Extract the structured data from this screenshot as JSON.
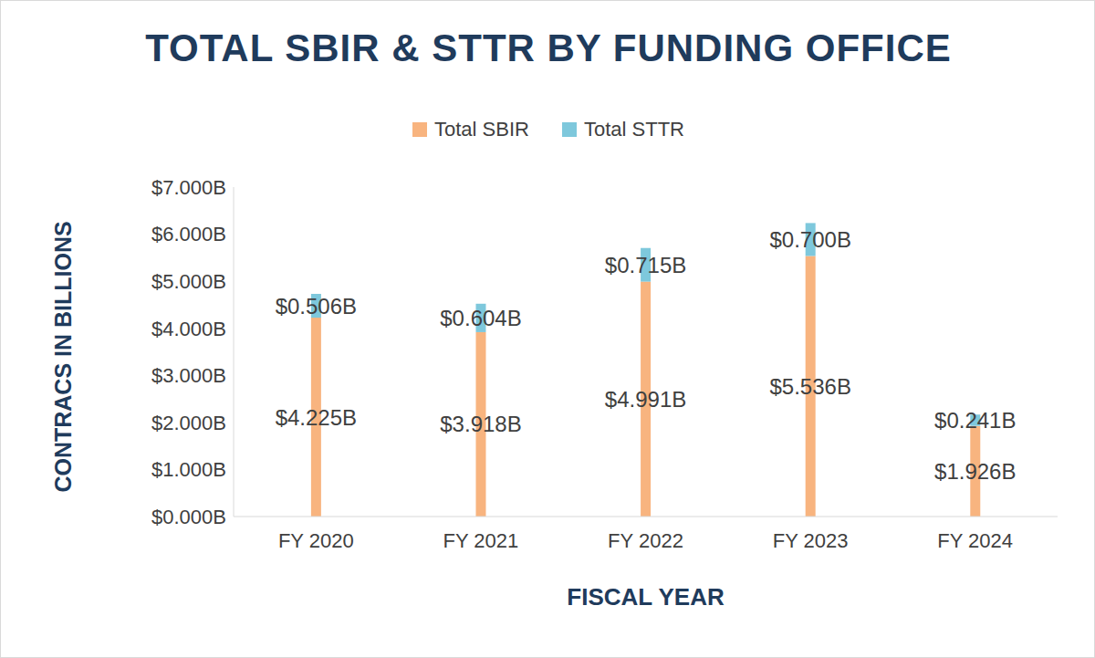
{
  "chart_data": {
    "type": "bar",
    "title": "TOTAL SBIR & STTR BY FUNDING OFFICE",
    "x_label": "FISCAL YEAR",
    "y_label": "CONTRACS IN BILLIONS",
    "categories": [
      "FY 2020",
      "FY 2021",
      "FY 2022",
      "FY 2023",
      "FY 2024"
    ],
    "series": [
      {
        "name": "Total SBIR",
        "color": "#f8b47f",
        "values": [
          4.225,
          3.918,
          4.991,
          5.536,
          1.926
        ],
        "value_labels": [
          "$4.225B",
          "$3.918B",
          "$4.991B",
          "$5.536B",
          "$1.926B"
        ]
      },
      {
        "name": "Total STTR",
        "color": "#7ec8dc",
        "values": [
          0.506,
          0.604,
          0.715,
          0.7,
          0.241
        ],
        "value_labels": [
          "$0.506B",
          "$0.604B",
          "$0.715B",
          "$0.700B",
          "$0.241B"
        ]
      }
    ],
    "stacked": true,
    "data_labels": true,
    "legend": "top",
    "grid": false,
    "ylim": [
      0,
      7
    ],
    "yticks": [
      {
        "value": 0,
        "label": "$0.000B"
      },
      {
        "value": 1,
        "label": "$1.000B"
      },
      {
        "value": 2,
        "label": "$2.000B"
      },
      {
        "value": 3,
        "label": "$3.000B"
      },
      {
        "value": 4,
        "label": "$4.000B"
      },
      {
        "value": 5,
        "label": "$5.000B"
      },
      {
        "value": 6,
        "label": "$6.000B"
      },
      {
        "value": 7,
        "label": "$7.000B"
      }
    ]
  }
}
